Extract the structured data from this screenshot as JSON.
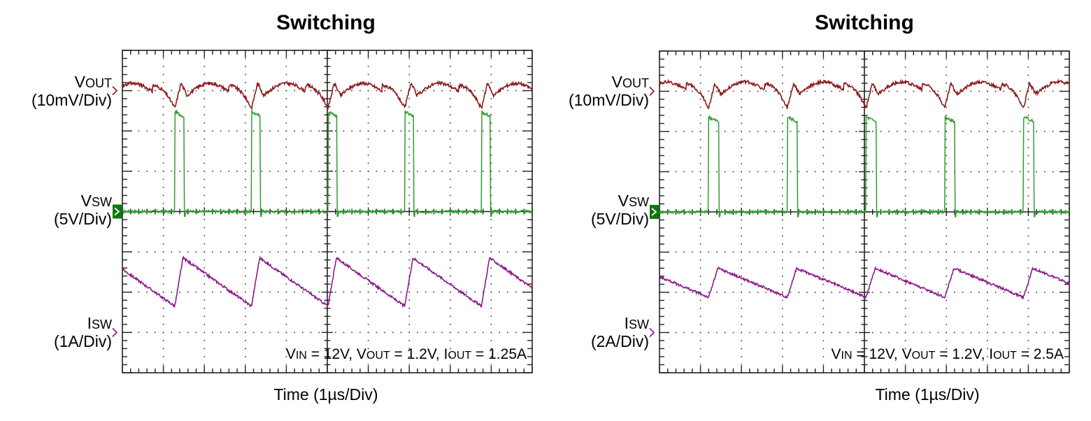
{
  "chart_data": [
    {
      "type": "line",
      "title": "Switching",
      "xlabel": "Time (1µs/Div)",
      "x_divisions": 10,
      "y_divisions": 8,
      "x_units_per_div": "1µs",
      "grid": true,
      "annotation": {
        "parts": [
          {
            "t": "V",
            "s": false
          },
          {
            "t": "IN",
            "s": true
          },
          {
            "t": " = 12V, V",
            "s": false
          },
          {
            "t": "OUT",
            "s": true
          },
          {
            "t": " = 1.2V, I",
            "s": false
          },
          {
            "t": "OUT",
            "s": true
          },
          {
            "t": " = 1.25A",
            "s": false
          }
        ],
        "text": "VIN = 12V, VOUT = 1.2V, IOUT = 1.25A"
      },
      "switching_period_div": 1.87,
      "first_edge_div": 1.28,
      "on_time_div": 0.22,
      "series": [
        {
          "name": "VOUT",
          "label_main": "V",
          "label_sub": "OUT",
          "scale": "(10mV/Div)",
          "color": "#8b1a1a",
          "ground_div": 7,
          "unit": "mV",
          "per_div": 10,
          "flat_level": 1.3,
          "dip_level": -4.4,
          "spike_level": 1.4
        },
        {
          "name": "VSW",
          "label_main": "V",
          "label_sub": "SW",
          "scale": "(5V/Div)",
          "color": "#2e9e2e",
          "ground_div": 4,
          "unit": "V",
          "per_div": 5,
          "low_level": 0,
          "high_level": 12.4
        },
        {
          "name": "ISW",
          "label_main": "I",
          "label_sub": "SW",
          "scale": "(1A/Div)",
          "color": "#8b1a8b",
          "ground_div": 1,
          "unit": "A",
          "per_div": 1,
          "valley": 0.65,
          "peak": 1.85
        }
      ]
    },
    {
      "type": "line",
      "title": "Switching",
      "xlabel": "Time (1µs/Div)",
      "x_divisions": 10,
      "y_divisions": 8,
      "x_units_per_div": "1µs",
      "grid": true,
      "annotation": {
        "parts": [
          {
            "t": "V",
            "s": false
          },
          {
            "t": "IN",
            "s": true
          },
          {
            "t": " = 12V, V",
            "s": false
          },
          {
            "t": "OUT",
            "s": true
          },
          {
            "t": " = 1.2V, I",
            "s": false
          },
          {
            "t": "OUT",
            "s": true
          },
          {
            "t": " = 2.5A",
            "s": false
          }
        ],
        "text": "VIN = 12V, VOUT = 1.2V, IOUT = 2.5A"
      },
      "switching_period_div": 1.92,
      "first_edge_div": 1.2,
      "on_time_div": 0.25,
      "series": [
        {
          "name": "VOUT",
          "label_main": "V",
          "label_sub": "OUT",
          "scale": "(10mV/Div)",
          "color": "#8b1a1a",
          "ground_div": 7,
          "unit": "mV",
          "per_div": 10,
          "flat_level": 1.8,
          "dip_level": -4.2,
          "spike_level": 1.5
        },
        {
          "name": "VSW",
          "label_main": "V",
          "label_sub": "SW",
          "scale": "(5V/Div)",
          "color": "#2e9e2e",
          "ground_div": 4,
          "unit": "V",
          "per_div": 5,
          "low_level": 0,
          "high_level": 11.8
        },
        {
          "name": "ISW",
          "label_main": "I",
          "label_sub": "SW",
          "scale": "(2A/Div)",
          "color": "#8b1a8b",
          "ground_div": 1,
          "unit": "A",
          "per_div": 2,
          "valley": 1.75,
          "peak": 3.2
        }
      ]
    }
  ]
}
